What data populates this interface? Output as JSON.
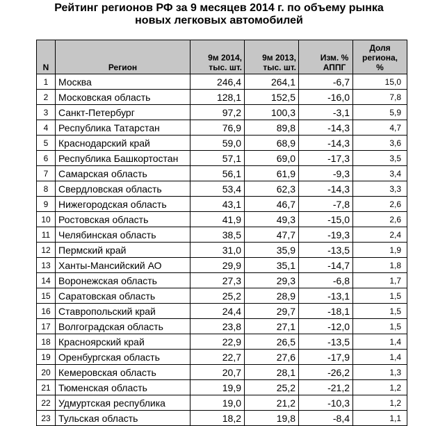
{
  "title": {
    "line1": "Рейтинг регионов РФ за 9 месяцев 2014 г. по объему рынка",
    "line2": "новых легковых автомобилей"
  },
  "table": {
    "headers": {
      "n": "N",
      "region": "Регион",
      "y2014": "9м 2014, тыс. шт.",
      "y2013": "9м 2013, тыс. шт.",
      "change": "Изм. % АППГ",
      "share": "Доля региона, %"
    },
    "rows": [
      {
        "n": "1",
        "region": "Москва",
        "y2014": "246,4",
        "y2013": "264,1",
        "change": "-6,7",
        "share": "15,0"
      },
      {
        "n": "2",
        "region": "Московская область",
        "y2014": "128,1",
        "y2013": "152,5",
        "change": "-16,0",
        "share": "7,8"
      },
      {
        "n": "3",
        "region": "Санкт-Петербург",
        "y2014": "97,2",
        "y2013": "100,3",
        "change": "-3,1",
        "share": "5,9"
      },
      {
        "n": "4",
        "region": "Республика Татарстан",
        "y2014": "76,9",
        "y2013": "89,8",
        "change": "-14,3",
        "share": "4,7"
      },
      {
        "n": "5",
        "region": "Краснодарский край",
        "y2014": "59,0",
        "y2013": "68,9",
        "change": "-14,3",
        "share": "3,6"
      },
      {
        "n": "6",
        "region": "Республика Башкортостан",
        "y2014": "57,1",
        "y2013": "69,0",
        "change": "-17,3",
        "share": "3,5"
      },
      {
        "n": "7",
        "region": "Самарская область",
        "y2014": "56,1",
        "y2013": "61,9",
        "change": "-9,3",
        "share": "3,4"
      },
      {
        "n": "8",
        "region": "Свердловская область",
        "y2014": "53,4",
        "y2013": "62,3",
        "change": "-14,3",
        "share": "3,3"
      },
      {
        "n": "9",
        "region": "Нижегородская область",
        "y2014": "43,1",
        "y2013": "46,7",
        "change": "-7,8",
        "share": "2,6"
      },
      {
        "n": "10",
        "region": "Ростовская область",
        "y2014": "41,9",
        "y2013": "49,3",
        "change": "-15,0",
        "share": "2,6"
      },
      {
        "n": "11",
        "region": "Челябинская область",
        "y2014": "38,5",
        "y2013": "47,7",
        "change": "-19,3",
        "share": "2,4"
      },
      {
        "n": "12",
        "region": "Пермский край",
        "y2014": "31,0",
        "y2013": "35,9",
        "change": "-13,5",
        "share": "1,9"
      },
      {
        "n": "13",
        "region": "Ханты-Мансийский АО",
        "y2014": "29,9",
        "y2013": "35,1",
        "change": "-14,7",
        "share": "1,8"
      },
      {
        "n": "14",
        "region": "Воронежская область",
        "y2014": "27,3",
        "y2013": "29,3",
        "change": "-6,8",
        "share": "1,7"
      },
      {
        "n": "15",
        "region": "Саратовская область",
        "y2014": "25,2",
        "y2013": "28,9",
        "change": "-13,1",
        "share": "1,5"
      },
      {
        "n": "16",
        "region": "Ставропольский край",
        "y2014": "24,4",
        "y2013": "29,7",
        "change": "-18,1",
        "share": "1,5"
      },
      {
        "n": "17",
        "region": "Волгоградская область",
        "y2014": "23,8",
        "y2013": "27,1",
        "change": "-12,0",
        "share": "1,5"
      },
      {
        "n": "18",
        "region": "Красноярский край",
        "y2014": "22,9",
        "y2013": "26,5",
        "change": "-13,5",
        "share": "1,4"
      },
      {
        "n": "19",
        "region": "Оренбургская область",
        "y2014": "22,7",
        "y2013": "27,6",
        "change": "-17,9",
        "share": "1,4"
      },
      {
        "n": "20",
        "region": "Кемеровская область",
        "y2014": "20,7",
        "y2013": "28,1",
        "change": "-26,2",
        "share": "1,3"
      },
      {
        "n": "21",
        "region": "Тюменская область",
        "y2014": "19,9",
        "y2013": "25,2",
        "change": "-21,2",
        "share": "1,2"
      },
      {
        "n": "22",
        "region": "Удмуртская республика",
        "y2014": "19,0",
        "y2013": "21,2",
        "change": "-10,3",
        "share": "1,2"
      },
      {
        "n": "23",
        "region": "Тульская область",
        "y2014": "18,2",
        "y2013": "19,8",
        "change": "-8,4",
        "share": "1,1"
      }
    ]
  }
}
